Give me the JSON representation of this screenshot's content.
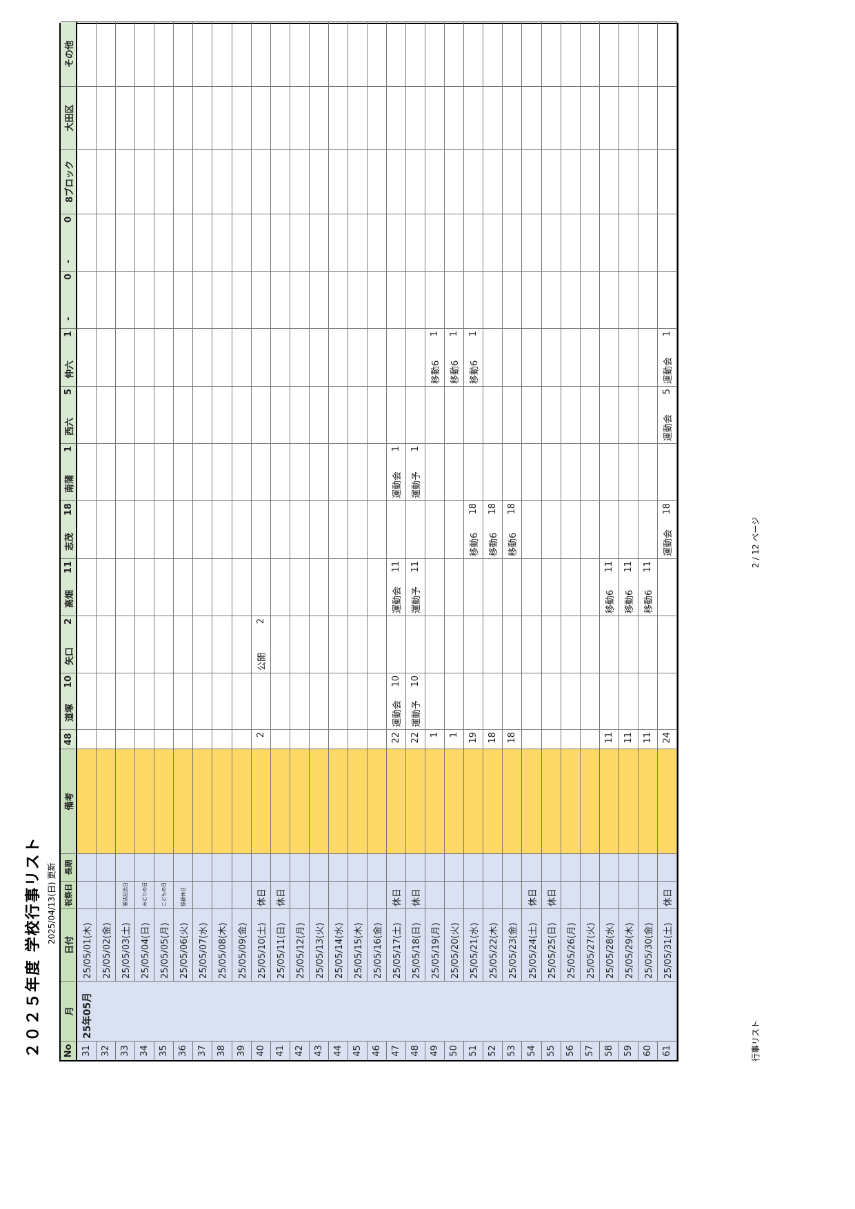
{
  "header": {
    "title": "２０２５年度 学校行事リスト",
    "updated": "2025/04/13(日) 更新"
  },
  "table": {
    "headers": {
      "no": "No",
      "month": "月",
      "date": "日付",
      "holiday": "祝祭日",
      "long": "長期",
      "note": "備考",
      "total": "48"
    },
    "schools": [
      {
        "name": "道塚",
        "count": 10
      },
      {
        "name": "矢口",
        "count": 2
      },
      {
        "name": "高畑",
        "count": 11
      },
      {
        "name": "志茂",
        "count": 18
      },
      {
        "name": "南蒲",
        "count": 1
      },
      {
        "name": "西六",
        "count": 5
      },
      {
        "name": "仲六",
        "count": 1
      },
      {
        "name": "-",
        "count": 0
      },
      {
        "name": "-",
        "count": 0
      },
      {
        "name": "8ブロック"
      },
      {
        "name": "大田区"
      },
      {
        "name": "その他"
      }
    ],
    "rows": [
      {
        "no": 31,
        "month": "25年05月",
        "date": "25/05/01(木)"
      },
      {
        "no": 32,
        "date": "25/05/02(金)"
      },
      {
        "no": 33,
        "date": "25/05/03(土)",
        "holiday": "憲法記念日"
      },
      {
        "no": 34,
        "date": "25/05/04(日)",
        "holiday": "みどりの日"
      },
      {
        "no": 35,
        "date": "25/05/05(月)",
        "holiday": "こどもの日"
      },
      {
        "no": 36,
        "date": "25/05/06(火)",
        "holiday": "振替休日"
      },
      {
        "no": 37,
        "date": "25/05/07(水)"
      },
      {
        "no": 38,
        "date": "25/05/08(木)"
      },
      {
        "no": 39,
        "date": "25/05/09(金)"
      },
      {
        "no": 40,
        "date": "25/05/10(土)",
        "holiday": "休日",
        "total": 2,
        "schools": [
          null,
          {
            "text": "公開",
            "count": 2
          },
          null,
          null,
          null,
          null,
          null,
          null,
          null,
          null,
          null,
          null
        ]
      },
      {
        "no": 41,
        "date": "25/05/11(日)",
        "holiday": "休日"
      },
      {
        "no": 42,
        "date": "25/05/12(月)"
      },
      {
        "no": 43,
        "date": "25/05/13(火)"
      },
      {
        "no": 44,
        "date": "25/05/14(水)"
      },
      {
        "no": 45,
        "date": "25/05/15(木)"
      },
      {
        "no": 46,
        "date": "25/05/16(金)"
      },
      {
        "no": 47,
        "date": "25/05/17(土)",
        "holiday": "休日",
        "total": 22,
        "schools": [
          {
            "text": "運動会",
            "count": 10
          },
          null,
          {
            "text": "運動会",
            "count": 11
          },
          null,
          {
            "text": "運動会",
            "count": 1
          },
          null,
          null,
          null,
          null,
          null,
          null,
          null
        ]
      },
      {
        "no": 48,
        "date": "25/05/18(日)",
        "holiday": "休日",
        "total": 22,
        "schools": [
          {
            "text": "運動予",
            "count": 10
          },
          null,
          {
            "text": "運動予",
            "count": 11
          },
          null,
          {
            "text": "運動予",
            "count": 1
          },
          null,
          null,
          null,
          null,
          null,
          null,
          null
        ]
      },
      {
        "no": 49,
        "date": "25/05/19(月)",
        "total": 1,
        "schools": [
          null,
          null,
          null,
          null,
          null,
          null,
          {
            "text": "移動6",
            "count": 1
          },
          null,
          null,
          null,
          null,
          null
        ]
      },
      {
        "no": 50,
        "date": "25/05/20(火)",
        "total": 1,
        "schools": [
          null,
          null,
          null,
          null,
          null,
          null,
          {
            "text": "移動6",
            "count": 1
          },
          null,
          null,
          null,
          null,
          null
        ]
      },
      {
        "no": 51,
        "date": "25/05/21(水)",
        "total": 19,
        "schools": [
          null,
          null,
          null,
          {
            "text": "移動6",
            "count": 18
          },
          null,
          null,
          {
            "text": "移動6",
            "count": 1
          },
          null,
          null,
          null,
          null,
          null
        ]
      },
      {
        "no": 52,
        "date": "25/05/22(木)",
        "total": 18,
        "schools": [
          null,
          null,
          null,
          {
            "text": "移動6",
            "count": 18
          },
          null,
          null,
          null,
          null,
          null,
          null,
          null,
          null
        ]
      },
      {
        "no": 53,
        "date": "25/05/23(金)",
        "total": 18,
        "schools": [
          null,
          null,
          null,
          {
            "text": "移動6",
            "count": 18
          },
          null,
          null,
          null,
          null,
          null,
          null,
          null,
          null
        ]
      },
      {
        "no": 54,
        "date": "25/05/24(土)",
        "holiday": "休日"
      },
      {
        "no": 55,
        "date": "25/05/25(日)",
        "holiday": "休日"
      },
      {
        "no": 56,
        "date": "25/05/26(月)"
      },
      {
        "no": 57,
        "date": "25/05/27(火)"
      },
      {
        "no": 58,
        "date": "25/05/28(水)",
        "total": 11,
        "schools": [
          null,
          null,
          {
            "text": "移動6",
            "count": 11
          },
          null,
          null,
          null,
          null,
          null,
          null,
          null,
          null,
          null
        ]
      },
      {
        "no": 59,
        "date": "25/05/29(木)",
        "total": 11,
        "schools": [
          null,
          null,
          {
            "text": "移動6",
            "count": 11
          },
          null,
          null,
          null,
          null,
          null,
          null,
          null,
          null,
          null
        ]
      },
      {
        "no": 60,
        "date": "25/05/30(金)",
        "total": 11,
        "schools": [
          null,
          null,
          {
            "text": "移動6",
            "count": 11
          },
          null,
          null,
          null,
          null,
          null,
          null,
          null,
          null,
          null
        ]
      },
      {
        "no": 61,
        "date": "25/05/31(土)",
        "holiday": "休日",
        "total": 24,
        "schools": [
          null,
          null,
          null,
          {
            "text": "運動会",
            "count": 18
          },
          null,
          {
            "text": "運動会",
            "count": 5
          },
          {
            "text": "運動会",
            "count": 1
          },
          null,
          null,
          null,
          null,
          null
        ]
      }
    ]
  },
  "footer": {
    "left": "行事リスト",
    "page": "2 / 12 ページ"
  }
}
